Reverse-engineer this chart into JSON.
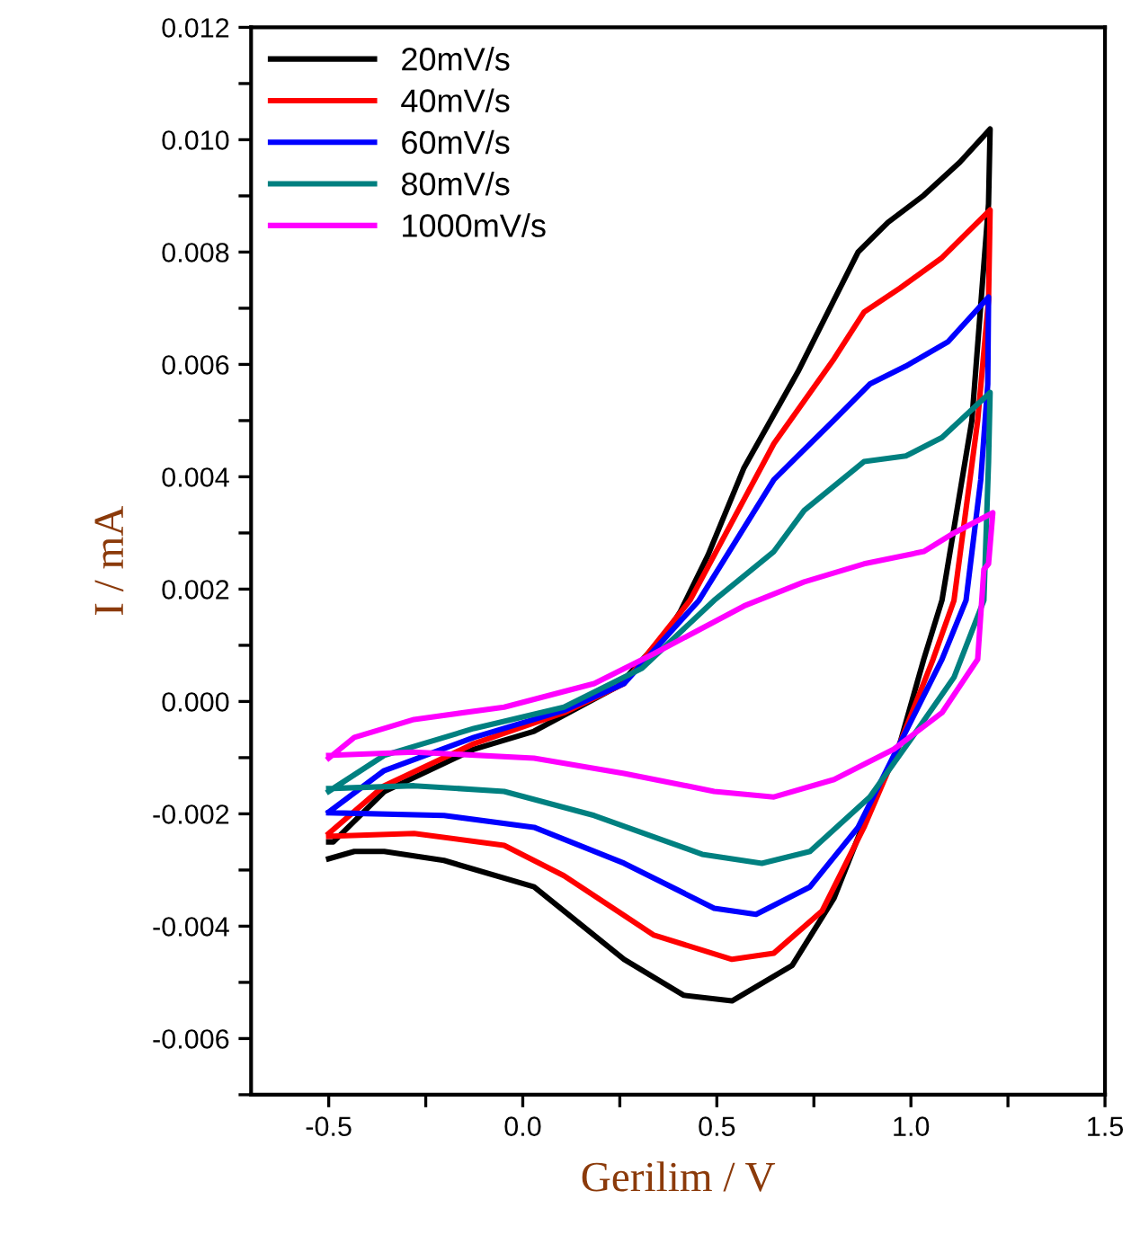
{
  "chart_data": {
    "type": "line",
    "xlabel": "Gerilim / V",
    "ylabel": "I / mA",
    "xlim": [
      -0.7,
      1.5
    ],
    "ylim": [
      -0.007,
      0.012
    ],
    "xticks": [
      {
        "value": -0.5,
        "label": "-0.5"
      },
      {
        "value": -0.25,
        "label": null
      },
      {
        "value": 0.0,
        "label": "0.0"
      },
      {
        "value": 0.25,
        "label": null
      },
      {
        "value": 0.5,
        "label": "0.5"
      },
      {
        "value": 0.75,
        "label": null
      },
      {
        "value": 1.0,
        "label": "1.0"
      },
      {
        "value": 1.25,
        "label": null
      },
      {
        "value": 1.5,
        "label": "1.5"
      }
    ],
    "yticks": [
      {
        "value": -0.007,
        "label": null
      },
      {
        "value": -0.006,
        "label": "-0.006"
      },
      {
        "value": -0.005,
        "label": null
      },
      {
        "value": -0.004,
        "label": "-0.004"
      },
      {
        "value": -0.003,
        "label": null
      },
      {
        "value": -0.002,
        "label": "-0.002"
      },
      {
        "value": -0.001,
        "label": null
      },
      {
        "value": 0.0,
        "label": "0.000"
      },
      {
        "value": 0.001,
        "label": null
      },
      {
        "value": 0.002,
        "label": "0.002"
      },
      {
        "value": 0.003,
        "label": null
      },
      {
        "value": 0.004,
        "label": "0.004"
      },
      {
        "value": 0.005,
        "label": null
      },
      {
        "value": 0.006,
        "label": "0.006"
      },
      {
        "value": 0.007,
        "label": null
      },
      {
        "value": 0.008,
        "label": "0.008"
      },
      {
        "value": 0.009,
        "label": null
      },
      {
        "value": 0.01,
        "label": "0.010"
      },
      {
        "value": 0.011,
        "label": null
      },
      {
        "value": 0.012,
        "label": "0.012"
      }
    ],
    "grid": false,
    "legend": "top left",
    "marker": "none",
    "line_style": "solid",
    "series": [
      {
        "name": "20mV/s",
        "color": "#000000",
        "x": [
          -0.5,
          -0.488,
          -0.356,
          -0.126,
          0.029,
          0.245,
          0.369,
          0.406,
          0.477,
          0.57,
          0.709,
          0.802,
          0.864,
          0.941,
          1.033,
          1.126,
          1.204,
          1.2,
          1.157,
          1.08,
          1.033,
          0.972,
          0.894,
          0.802,
          0.694,
          0.539,
          0.415,
          0.261,
          0.029,
          -0.203,
          -0.357,
          -0.434,
          -0.5
        ],
        "values": [
          -0.0025,
          -0.0025,
          -0.0016,
          -0.00085,
          -0.00053,
          0.00027,
          0.0012,
          0.0016,
          0.0026,
          0.00416,
          0.00587,
          0.00715,
          0.008,
          0.00853,
          0.00901,
          0.0096,
          0.01019,
          0.00886,
          0.005,
          0.0018,
          0.00075,
          -0.00074,
          -0.0019,
          -0.0035,
          -0.0047,
          -0.00533,
          -0.00523,
          -0.00459,
          -0.0033,
          -0.00283,
          -0.00267,
          -0.00267,
          -0.0028
        ]
      },
      {
        "name": "40mV/s",
        "color": "#ff0000",
        "x": [
          -0.5,
          -0.357,
          -0.126,
          0.106,
          0.261,
          0.431,
          0.647,
          0.802,
          0.879,
          0.972,
          1.08,
          1.204,
          1.2,
          1.172,
          1.111,
          1.057,
          0.972,
          0.879,
          0.771,
          0.647,
          0.539,
          0.338,
          0.106,
          -0.048,
          -0.28,
          -0.5
        ],
        "values": [
          -0.00235,
          -0.0015,
          -0.00075,
          -0.0002,
          0.00032,
          0.0018,
          0.00459,
          0.0061,
          0.00693,
          0.00736,
          0.0079,
          0.00875,
          0.00715,
          0.005,
          0.0018,
          0.00075,
          -0.00074,
          -0.00224,
          -0.00373,
          -0.00448,
          -0.00459,
          -0.00416,
          -0.0031,
          -0.00256,
          -0.00235,
          -0.0024
        ]
      },
      {
        "name": "60mV/s",
        "color": "#0000ff",
        "x": [
          -0.5,
          -0.357,
          -0.126,
          0.106,
          0.261,
          0.454,
          0.647,
          0.802,
          0.894,
          0.987,
          1.095,
          1.2,
          1.198,
          1.18,
          1.142,
          1.08,
          0.972,
          0.864,
          0.74,
          0.601,
          0.493,
          0.261,
          0.029,
          -0.203,
          -0.5
        ],
        "values": [
          -0.00197,
          -0.00123,
          -0.00064,
          -0.00016,
          0.00032,
          0.0018,
          0.00395,
          0.00501,
          0.00565,
          0.00597,
          0.0064,
          0.0072,
          0.00565,
          0.00395,
          0.0018,
          0.00075,
          -0.00074,
          -0.00224,
          -0.0033,
          -0.00379,
          -0.00368,
          -0.00288,
          -0.00224,
          -0.00203,
          -0.00198
        ]
      },
      {
        "name": "80mV/s",
        "color": "#008080",
        "x": [
          -0.5,
          -0.357,
          -0.126,
          0.106,
          0.307,
          0.493,
          0.647,
          0.725,
          0.879,
          0.987,
          1.08,
          1.204,
          1.2,
          1.188,
          1.111,
          1.003,
          0.894,
          0.74,
          0.616,
          0.462,
          0.184,
          -0.048,
          -0.28,
          -0.5
        ],
        "values": [
          -0.0016,
          -0.00096,
          -0.00048,
          -0.0001,
          0.00059,
          0.0018,
          0.00267,
          0.0034,
          0.00427,
          0.00437,
          0.0047,
          0.0055,
          0.00427,
          0.0018,
          0.00043,
          -0.00064,
          -0.0017,
          -0.00267,
          -0.00288,
          -0.00272,
          -0.00203,
          -0.0016,
          -0.0015,
          -0.00155
        ]
      },
      {
        "name": "1000mV/s",
        "color": "#ff00ff",
        "x": [
          -0.5,
          -0.434,
          -0.28,
          -0.048,
          0.184,
          0.338,
          0.57,
          0.725,
          0.879,
          1.033,
          1.111,
          1.211,
          1.2,
          1.188,
          1.172,
          1.08,
          0.956,
          0.802,
          0.647,
          0.493,
          0.261,
          0.029,
          -0.28,
          -0.5
        ],
        "values": [
          -0.00101,
          -0.00064,
          -0.00032,
          -0.0001,
          0.00032,
          0.00085,
          0.0017,
          0.00213,
          0.00245,
          0.00267,
          0.003,
          0.00336,
          0.00245,
          0.00235,
          0.00075,
          -0.0002,
          -0.00085,
          -0.00139,
          -0.0017,
          -0.0016,
          -0.00128,
          -0.00101,
          -0.0009,
          -0.00096
        ]
      }
    ]
  }
}
